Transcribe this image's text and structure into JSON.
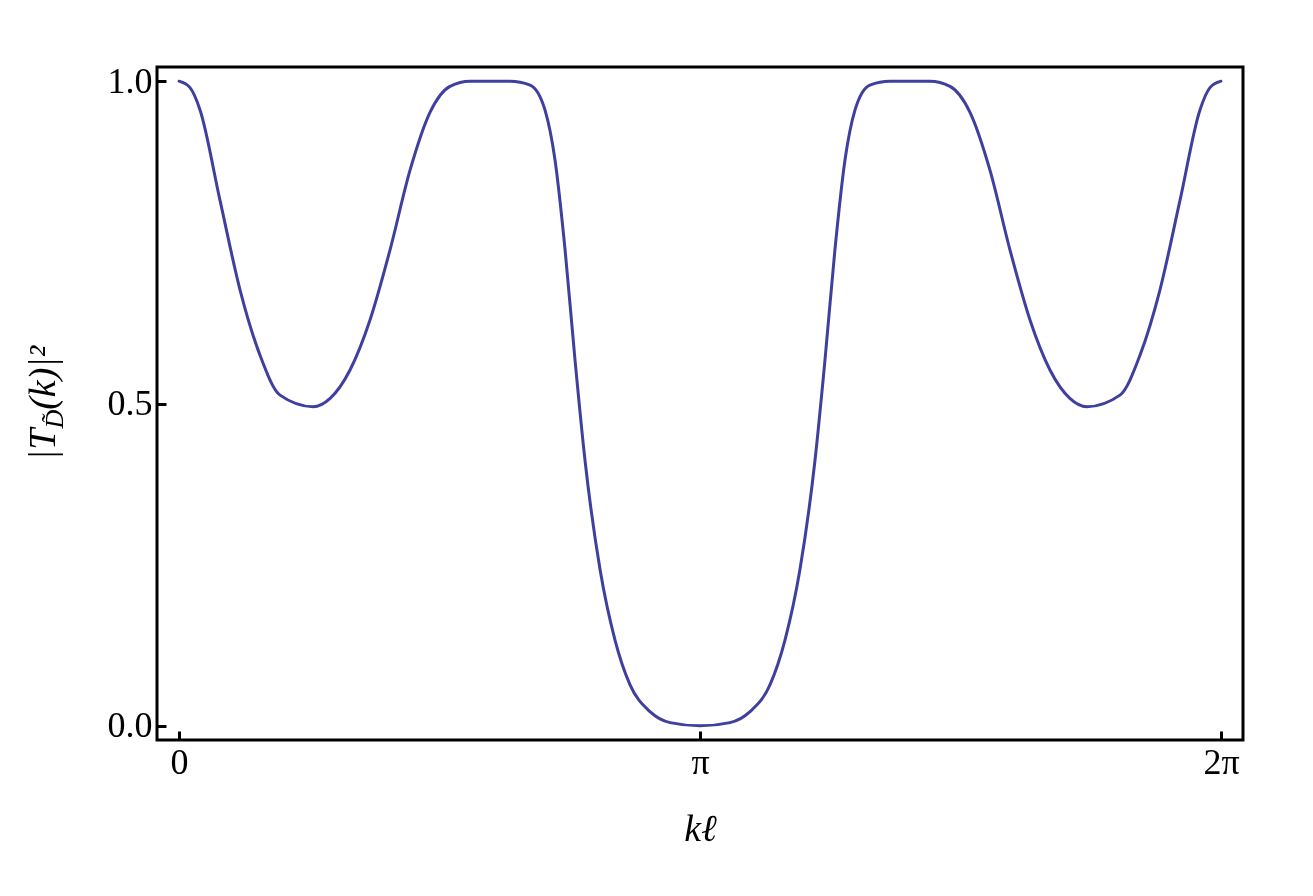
{
  "chart_data": {
    "type": "line",
    "xlabel": "kℓ",
    "ylabel": "|T$_{D̃}$(k)|²",
    "x": [
      0,
      0.066,
      0.127,
      0.247,
      0.368,
      0.488,
      0.609,
      0.808,
      0.911,
      1.031,
      1.152,
      1.272,
      1.393,
      1.514,
      1.634,
      1.755,
      1.996,
      2.117,
      2.207,
      2.267,
      2.328,
      2.388,
      2.448,
      2.539,
      2.629,
      2.719,
      2.84,
      2.961,
      3.142,
      3.322,
      3.443,
      3.564,
      3.654,
      3.744,
      3.835,
      3.895,
      3.955,
      4.016,
      4.076,
      4.166,
      4.287,
      4.528,
      4.649,
      4.769,
      4.89,
      5.011,
      5.131,
      5.252,
      5.372,
      5.475,
      5.674,
      5.795,
      5.915,
      6.036,
      6.156,
      6.217,
      6.283
    ],
    "series": [
      {
        "color": "#3f3f9f",
        "values": [
          1.0,
          0.99,
          0.955,
          0.815,
          0.676,
          0.575,
          0.513,
          0.495,
          0.508,
          0.552,
          0.63,
          0.738,
          0.862,
          0.952,
          0.992,
          1.0,
          1.0,
          0.994,
          0.955,
          0.878,
          0.738,
          0.567,
          0.412,
          0.242,
          0.133,
          0.064,
          0.022,
          0.005,
          0,
          0.005,
          0.022,
          0.064,
          0.133,
          0.242,
          0.412,
          0.567,
          0.738,
          0.878,
          0.955,
          0.994,
          1.0,
          1.0,
          0.992,
          0.952,
          0.862,
          0.738,
          0.63,
          0.552,
          0.508,
          0.495,
          0.513,
          0.575,
          0.676,
          0.815,
          0.955,
          0.99,
          1.0
        ]
      }
    ],
    "xlim": [
      -0.133,
      6.416
    ],
    "ylim": [
      -0.022,
      1.022
    ],
    "xticks": [
      0,
      {
        "value": 3.14159,
        "label": "π"
      },
      {
        "value": 6.28319,
        "label": "2π"
      }
    ],
    "yticks": [
      {
        "value": 0,
        "label": "0.0"
      },
      {
        "value": 0.5,
        "label": "0.5"
      },
      {
        "value": 1,
        "label": "1.0"
      }
    ],
    "grid": false,
    "marker": "none",
    "line_style": "solid"
  }
}
